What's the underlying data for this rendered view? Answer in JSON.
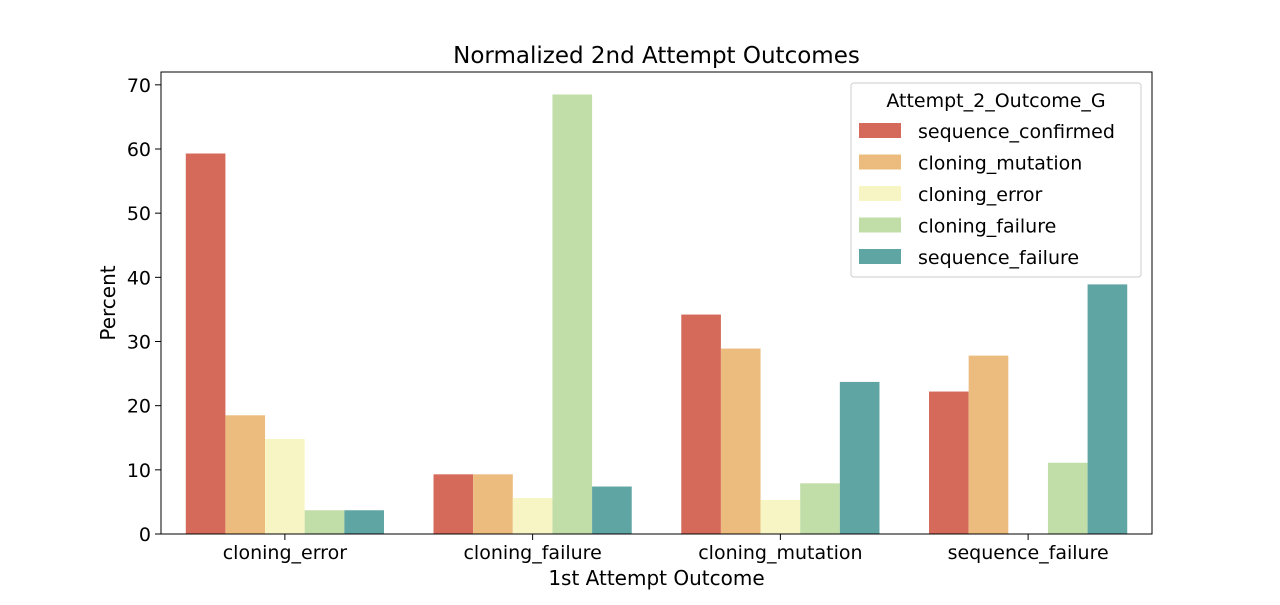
{
  "chart_data": {
    "type": "bar",
    "title": "Normalized 2nd Attempt Outcomes",
    "xlabel": "1st Attempt Outcome",
    "ylabel": "Percent",
    "ylim": [
      0,
      72
    ],
    "yticks": [
      "0",
      "10",
      "20",
      "30",
      "40",
      "50",
      "60",
      "70"
    ],
    "categories": [
      "cloning_error",
      "cloning_failure",
      "cloning_mutation",
      "sequence_failure"
    ],
    "legend_title": "Attempt_2_Outcome_G",
    "legend_position": "top-right",
    "grid": false,
    "series": [
      {
        "name": "sequence_confirmed",
        "color": "#d56a5a",
        "values": [
          59.3,
          9.3,
          34.2,
          22.2
        ]
      },
      {
        "name": "cloning_mutation",
        "color": "#ebbc7e",
        "values": [
          18.5,
          9.3,
          28.9,
          27.8
        ]
      },
      {
        "name": "cloning_error",
        "color": "#f7f5c3",
        "values": [
          14.8,
          5.6,
          5.3,
          0
        ]
      },
      {
        "name": "cloning_failure",
        "color": "#c1dea8",
        "values": [
          3.7,
          68.5,
          7.9,
          11.1
        ]
      },
      {
        "name": "sequence_failure",
        "color": "#5fa5a3",
        "values": [
          3.7,
          7.4,
          23.7,
          38.9
        ]
      }
    ]
  }
}
